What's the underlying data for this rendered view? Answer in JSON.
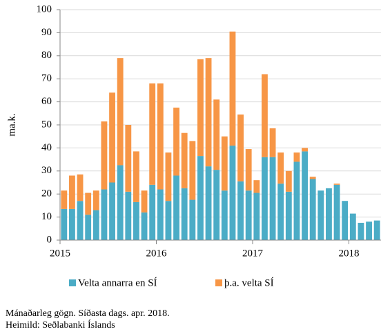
{
  "chart_data": {
    "type": "stacked_bar",
    "ylabel": "ma.k.",
    "categories": [
      "2015",
      null,
      null,
      null,
      null,
      null,
      null,
      null,
      null,
      null,
      null,
      null,
      "2016",
      null,
      null,
      null,
      null,
      null,
      null,
      null,
      null,
      null,
      null,
      null,
      "2017",
      null,
      null,
      null,
      null,
      null,
      null,
      null,
      null,
      null,
      null,
      null,
      "2018",
      null,
      null,
      null
    ],
    "series": [
      {
        "name": "Velta annarra en SÍ",
        "color": "#4bacc6",
        "values": [
          13.5,
          13.5,
          17,
          11,
          13,
          22,
          25,
          32.5,
          21,
          16.5,
          12,
          24,
          22,
          17,
          28,
          22.5,
          17.5,
          36.5,
          32,
          30.5,
          21.5,
          41,
          25.5,
          21.5,
          20.5,
          36,
          36,
          24.5,
          21,
          34,
          38.5,
          26.5,
          21.5,
          22.5,
          24,
          17,
          11.5,
          7.5,
          8,
          8.5
        ]
      },
      {
        "name": "þ.a. velta SÍ",
        "color": "#f79646",
        "values": [
          8,
          14.5,
          11.5,
          9.5,
          8.5,
          29.5,
          39,
          46.5,
          29,
          22,
          9.5,
          44,
          46,
          21,
          29.5,
          24,
          25.5,
          42,
          47,
          30.5,
          23.5,
          49.5,
          29,
          18,
          5.5,
          36,
          12.5,
          13.5,
          9,
          4,
          1.5,
          1,
          0,
          0,
          0.5,
          0,
          0,
          0,
          0,
          0
        ]
      }
    ],
    "ylim": [
      0,
      100
    ],
    "yticks": [
      0,
      10,
      20,
      30,
      40,
      50,
      60,
      70,
      80,
      90,
      100
    ],
    "grid": true,
    "notes": [
      "Mánaðarleg gögn. Síðasta dags. apr. 2018.",
      "Heimild: Seðlabanki Íslands"
    ]
  }
}
